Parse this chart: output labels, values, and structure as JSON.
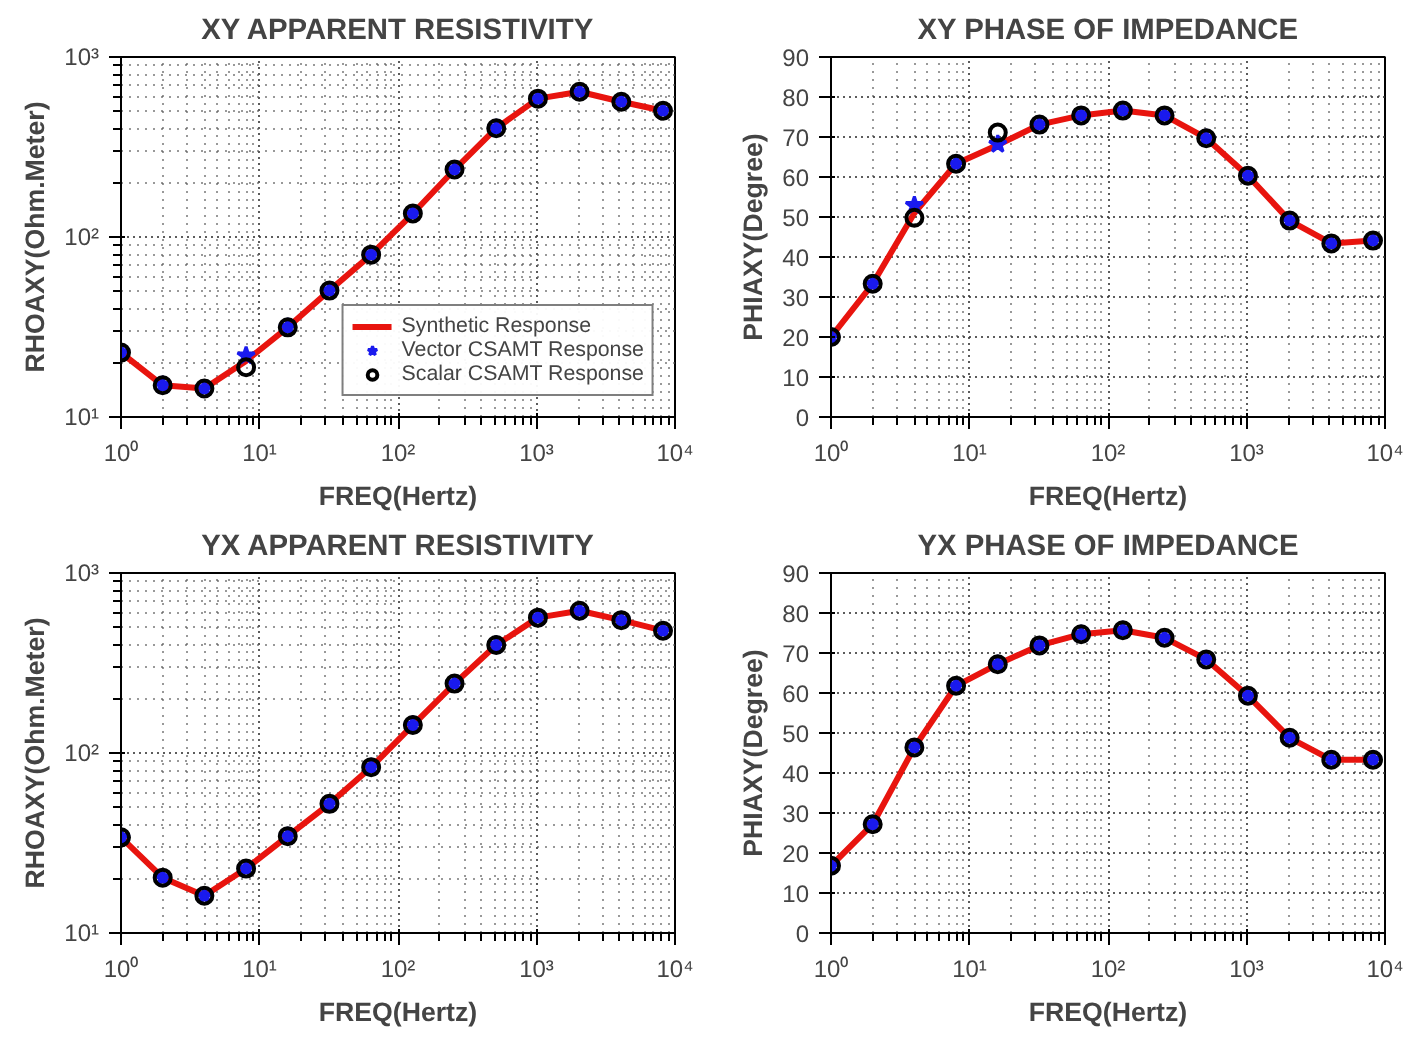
{
  "chart_data": [
    {
      "type": "line",
      "title": "XY APPARENT RESISTIVITY",
      "xlabel": "FREQ(Hertz)",
      "ylabel": "RHOAXY(Ohm.Meter)",
      "log": "xy",
      "grid": true,
      "legend": "bottom right",
      "x": [
        1,
        2,
        4,
        8,
        16,
        32,
        64,
        128,
        256,
        512,
        1024,
        2048,
        4096,
        8192
      ],
      "xlim": [
        1,
        10000
      ],
      "xticks": [
        {
          "value": 1,
          "label": "10⁰"
        },
        {
          "value": 10,
          "label": "10¹"
        },
        {
          "value": 100,
          "label": "10²"
        },
        {
          "value": 1000,
          "label": "10³"
        },
        {
          "value": 10000,
          "label": "10⁴"
        }
      ],
      "ylim": [
        10,
        1000
      ],
      "yticks": [
        {
          "value": 10,
          "label": "10¹"
        },
        {
          "value": 100,
          "label": "10²"
        },
        {
          "value": 1000,
          "label": "10³"
        }
      ],
      "series": [
        {
          "name": "Synthetic Response",
          "line_style": "solid",
          "color": "#e8140e",
          "values": [
            22.8,
            15.0,
            14.4,
            20.5,
            31.5,
            50.4,
            79.8,
            135,
            237,
            402,
            587,
            641,
            564,
            503
          ]
        },
        {
          "name": "Vector CSAMT Response",
          "type": "scatter",
          "marker": "star",
          "color": "#1a1aee",
          "values": [
            22.8,
            15.0,
            14.4,
            21.9,
            31.5,
            50.4,
            79.8,
            135,
            237,
            402,
            587,
            641,
            564,
            503
          ]
        },
        {
          "name": "Scalar CSAMT Response",
          "type": "scatter",
          "marker": "circle",
          "color": "#000000",
          "values": [
            22.8,
            15.0,
            14.4,
            18.9,
            31.5,
            50.4,
            79.8,
            135,
            237,
            402,
            587,
            641,
            564,
            503
          ]
        }
      ]
    },
    {
      "type": "line",
      "title": "XY PHASE OF IMPEDANCE",
      "xlabel": "FREQ(Hertz)",
      "ylabel": "PHIAXY(Degree)",
      "log": "x",
      "grid": true,
      "x": [
        1,
        2,
        4,
        8,
        16,
        32,
        64,
        128,
        256,
        512,
        1024,
        2048,
        4096,
        8192
      ],
      "xlim": [
        1,
        10000
      ],
      "xticks": [
        {
          "value": 1,
          "label": "10⁰"
        },
        {
          "value": 10,
          "label": "10¹"
        },
        {
          "value": 100,
          "label": "10²"
        },
        {
          "value": 1000,
          "label": "10³"
        },
        {
          "value": 10000,
          "label": "10⁴"
        }
      ],
      "ylim": [
        0,
        90
      ],
      "yticks": [
        0,
        10,
        20,
        30,
        40,
        50,
        60,
        70,
        80,
        90
      ],
      "series": [
        {
          "line_style": "solid",
          "color": "#e8140e",
          "values": [
            20.0,
            33.3,
            51.0,
            63.3,
            68.0,
            73.1,
            75.4,
            76.6,
            75.4,
            69.7,
            60.3,
            49.1,
            43.4,
            44.1
          ]
        },
        {
          "type": "scatter",
          "marker": "star",
          "color": "#1a1aee",
          "values": [
            20.0,
            33.3,
            52.9,
            63.3,
            68.2,
            73.1,
            75.4,
            76.6,
            75.4,
            69.7,
            60.3,
            49.1,
            43.4,
            44.1
          ]
        },
        {
          "type": "scatter",
          "marker": "circle",
          "color": "#000000",
          "values": [
            20.0,
            33.3,
            49.8,
            63.3,
            71.1,
            73.1,
            75.4,
            76.6,
            75.4,
            69.7,
            60.3,
            49.1,
            43.4,
            44.1
          ]
        }
      ]
    },
    {
      "type": "line",
      "title": "YX APPARENT RESISTIVITY",
      "xlabel": "FREQ(Hertz)",
      "ylabel": "RHOAXY(Ohm.Meter)",
      "log": "xy",
      "grid": true,
      "x": [
        1,
        2,
        4,
        8,
        16,
        32,
        64,
        128,
        256,
        512,
        1024,
        2048,
        4096,
        8192
      ],
      "xlim": [
        1,
        10000
      ],
      "xticks": [
        {
          "value": 1,
          "label": "10⁰"
        },
        {
          "value": 10,
          "label": "10¹"
        },
        {
          "value": 100,
          "label": "10²"
        },
        {
          "value": 1000,
          "label": "10³"
        },
        {
          "value": 10000,
          "label": "10⁴"
        }
      ],
      "ylim": [
        10,
        1000
      ],
      "yticks": [
        {
          "value": 10,
          "label": "10¹"
        },
        {
          "value": 100,
          "label": "10²"
        },
        {
          "value": 1000,
          "label": "10³"
        }
      ],
      "series": [
        {
          "line_style": "solid",
          "color": "#e8140e",
          "values": [
            34.0,
            20.3,
            16.1,
            22.8,
            34.5,
            52.2,
            83.4,
            143,
            243,
            398,
            565,
            617,
            547,
            478
          ]
        },
        {
          "type": "scatter",
          "marker": "star",
          "color": "#1a1aee",
          "values": [
            34.0,
            20.3,
            16.1,
            22.8,
            34.5,
            52.2,
            83.4,
            143,
            243,
            398,
            565,
            617,
            547,
            478
          ]
        },
        {
          "type": "scatter",
          "marker": "circle",
          "color": "#000000",
          "values": [
            34.0,
            20.3,
            16.1,
            22.8,
            34.5,
            52.2,
            83.4,
            143,
            243,
            398,
            565,
            617,
            547,
            478
          ]
        }
      ]
    },
    {
      "type": "line",
      "title": "YX PHASE OF IMPEDANCE",
      "xlabel": "FREQ(Hertz)",
      "ylabel": "PHIAXY(Degree)",
      "log": "x",
      "grid": true,
      "x": [
        1,
        2,
        4,
        8,
        16,
        32,
        64,
        128,
        256,
        512,
        1024,
        2048,
        4096,
        8192
      ],
      "xlim": [
        1,
        10000
      ],
      "xticks": [
        {
          "value": 1,
          "label": "10⁰"
        },
        {
          "value": 10,
          "label": "10¹"
        },
        {
          "value": 100,
          "label": "10²"
        },
        {
          "value": 1000,
          "label": "10³"
        },
        {
          "value": 10000,
          "label": "10⁴"
        }
      ],
      "ylim": [
        0,
        90
      ],
      "yticks": [
        0,
        10,
        20,
        30,
        40,
        50,
        60,
        70,
        80,
        90
      ],
      "series": [
        {
          "line_style": "solid",
          "color": "#e8140e",
          "values": [
            16.8,
            27.2,
            46.4,
            61.8,
            67.2,
            71.9,
            74.7,
            75.7,
            73.8,
            68.4,
            59.3,
            48.8,
            43.3,
            43.3
          ]
        },
        {
          "type": "scatter",
          "marker": "star",
          "color": "#1a1aee",
          "values": [
            16.8,
            27.2,
            46.4,
            61.8,
            67.2,
            71.9,
            74.7,
            75.7,
            73.8,
            68.4,
            59.3,
            48.8,
            43.3,
            43.3
          ]
        },
        {
          "type": "scatter",
          "marker": "circle",
          "color": "#000000",
          "values": [
            16.8,
            27.2,
            46.4,
            61.8,
            67.2,
            71.9,
            74.7,
            75.7,
            73.8,
            68.4,
            59.3,
            48.8,
            43.3,
            43.3
          ]
        }
      ]
    }
  ]
}
